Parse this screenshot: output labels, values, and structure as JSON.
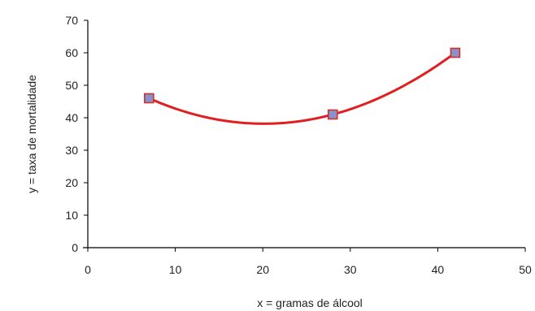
{
  "chart_data": {
    "type": "scatter",
    "title": "",
    "xlabel": "x = gramas de álcool",
    "ylabel": "y = taxa de mortalidade",
    "xlim": [
      0,
      50
    ],
    "ylim": [
      0,
      70
    ],
    "xticks": [
      "0",
      "10",
      "20",
      "30",
      "40",
      "50"
    ],
    "yticks": [
      "0",
      "10",
      "20",
      "30",
      "40",
      "50",
      "60",
      "70"
    ],
    "grid": false,
    "legend": "none",
    "points": {
      "x": [
        7,
        28,
        42
      ],
      "y": [
        46,
        41,
        60
      ]
    },
    "trendline": {
      "type": "polynomial",
      "order": 2,
      "color": "#e02020"
    },
    "marker": {
      "shape": "square",
      "fill": "#8a93c9",
      "edge": "#d23030"
    },
    "axis_color": "#000000"
  }
}
